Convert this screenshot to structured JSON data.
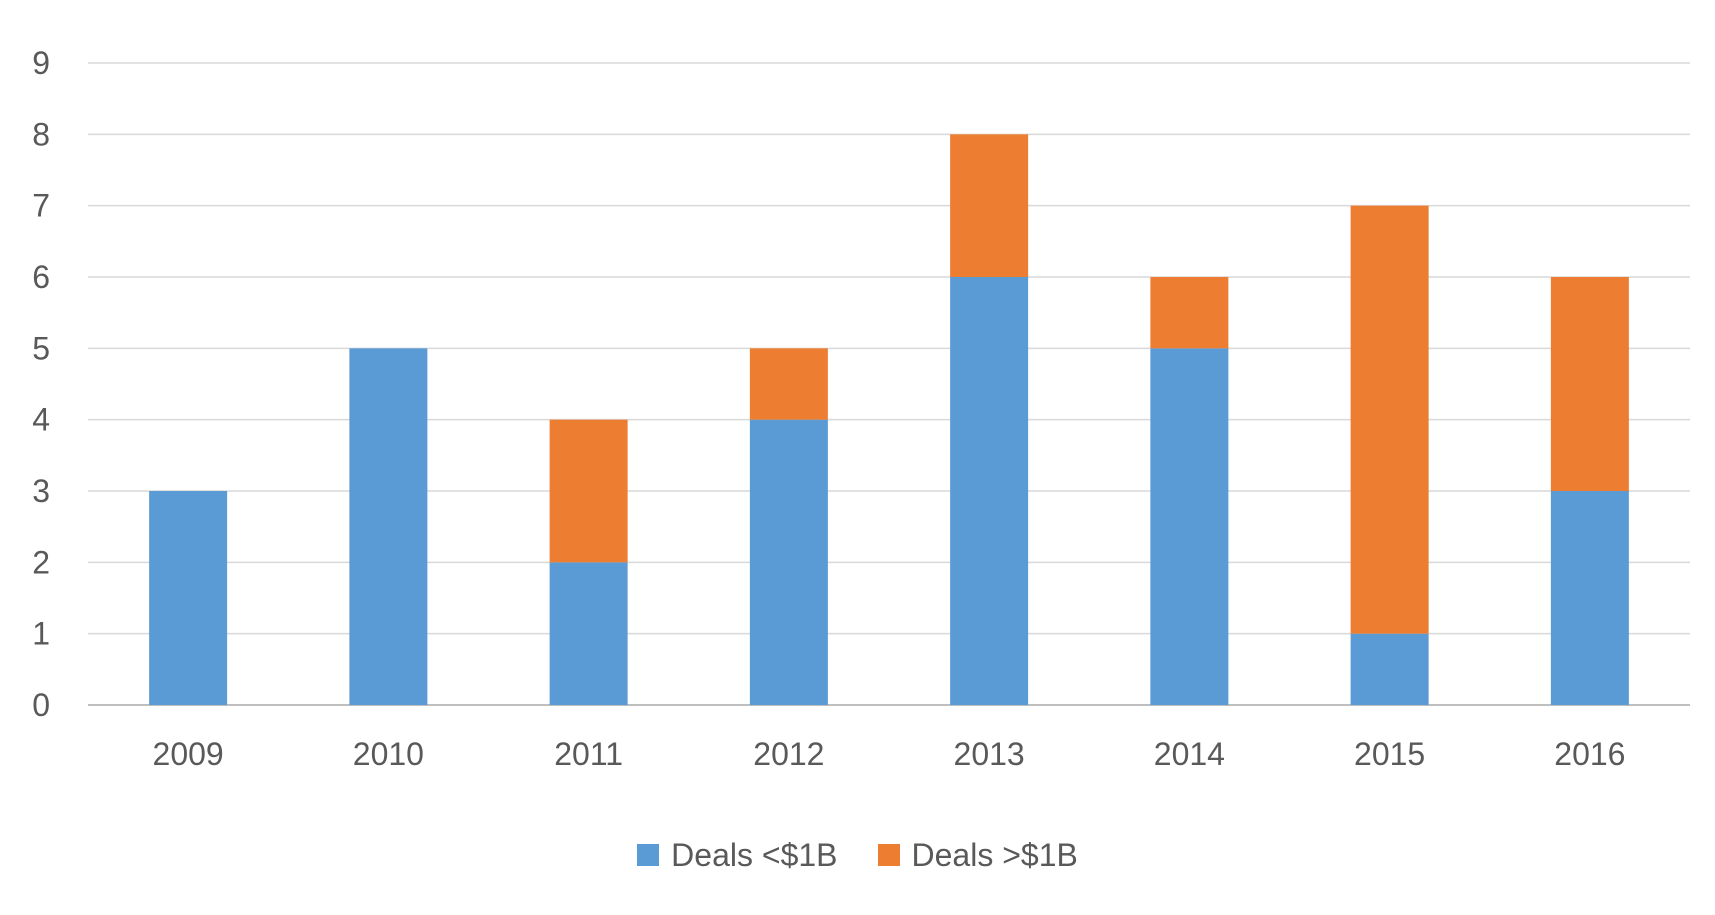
{
  "chart_data": {
    "type": "bar",
    "stacked": true,
    "title": "",
    "xlabel": "",
    "ylabel": "",
    "categories": [
      "2009",
      "2010",
      "2011",
      "2012",
      "2013",
      "2014",
      "2015",
      "2016"
    ],
    "series": [
      {
        "name": "Deals <$1B",
        "color": "#5b9bd5",
        "values": [
          3,
          5,
          2,
          4,
          6,
          5,
          1,
          3
        ]
      },
      {
        "name": "Deals >$1B",
        "color": "#ed7d31",
        "values": [
          0,
          0,
          2,
          1,
          2,
          1,
          6,
          3
        ]
      }
    ],
    "ylim": [
      0,
      9
    ],
    "yticks": [
      "0",
      "1",
      "2",
      "3",
      "4",
      "5",
      "6",
      "7",
      "8",
      "9"
    ],
    "grid": true,
    "legend_position": "bottom"
  }
}
